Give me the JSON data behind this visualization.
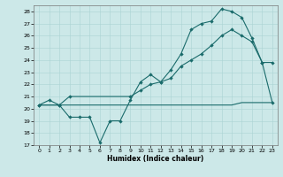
{
  "xlabel": "Humidex (Indice chaleur)",
  "xlim": [
    -0.5,
    23.5
  ],
  "ylim": [
    17,
    28.5
  ],
  "yticks": [
    17,
    18,
    19,
    20,
    21,
    22,
    23,
    24,
    25,
    26,
    27,
    28
  ],
  "xticks": [
    0,
    1,
    2,
    3,
    4,
    5,
    6,
    7,
    8,
    9,
    10,
    11,
    12,
    13,
    14,
    15,
    16,
    17,
    18,
    19,
    20,
    21,
    22,
    23
  ],
  "bg_color": "#cce8e8",
  "line_color": "#1a6b6b",
  "line1_x": [
    0,
    1,
    2,
    3,
    4,
    5,
    6,
    7,
    8,
    9,
    10,
    11,
    12,
    13,
    14,
    15,
    16,
    17,
    18,
    19,
    20,
    21,
    22,
    23
  ],
  "line1_y": [
    20.3,
    20.7,
    20.3,
    19.3,
    19.3,
    19.3,
    17.2,
    19.0,
    19.0,
    20.7,
    22.2,
    22.8,
    22.2,
    23.2,
    24.5,
    26.5,
    27.0,
    27.2,
    28.2,
    28.0,
    27.5,
    25.8,
    23.8,
    23.8
  ],
  "line2_x": [
    0,
    2,
    3,
    9,
    10,
    11,
    12,
    13,
    14,
    15,
    16,
    17,
    18,
    19,
    20,
    21,
    22,
    23
  ],
  "line2_y": [
    20.3,
    20.3,
    21.0,
    21.0,
    21.5,
    22.0,
    22.2,
    22.5,
    23.5,
    24.0,
    24.5,
    25.2,
    26.0,
    26.5,
    26.0,
    25.5,
    23.8,
    20.5
  ],
  "line3_x": [
    0,
    1,
    2,
    3,
    4,
    5,
    6,
    7,
    8,
    9,
    10,
    11,
    12,
    13,
    14,
    15,
    16,
    17,
    18,
    19,
    20,
    21,
    22,
    23
  ],
  "line3_y": [
    20.3,
    20.3,
    20.3,
    20.3,
    20.3,
    20.3,
    20.3,
    20.3,
    20.3,
    20.3,
    20.3,
    20.3,
    20.3,
    20.3,
    20.3,
    20.3,
    20.3,
    20.3,
    20.3,
    20.3,
    20.5,
    20.5,
    20.5,
    20.5
  ]
}
